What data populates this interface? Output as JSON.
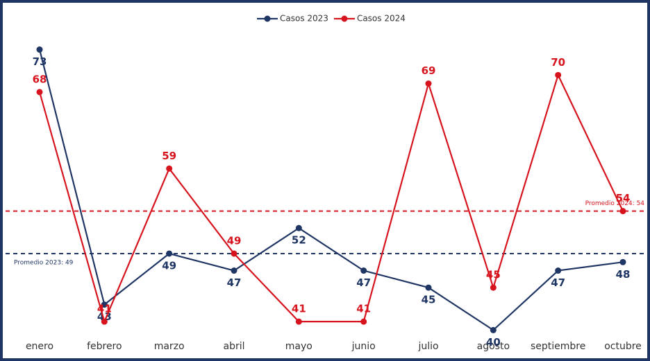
{
  "chart_data": {
    "type": "line",
    "categories": [
      "enero",
      "febrero",
      "marzo",
      "abril",
      "mayo",
      "junio",
      "julio",
      "agosto",
      "septiembre",
      "octubre"
    ],
    "series": [
      {
        "name": "Casos 2023",
        "color": "#1f3564",
        "values": [
          73,
          43,
          49,
          47,
          52,
          47,
          45,
          40,
          47,
          48
        ]
      },
      {
        "name": "Casos 2024",
        "color": "#d7141e",
        "values": [
          68,
          41,
          59,
          49,
          41,
          41,
          69,
          45,
          70,
          54
        ]
      }
    ],
    "reference_lines": [
      {
        "value": 49,
        "label": "Promedio 2023: 49",
        "color": "#1f3564"
      },
      {
        "value": 54,
        "label": "Promedio 2024: 54",
        "color": "#d7141e"
      }
    ],
    "ylim": [
      39.3,
      77.2
    ],
    "legend": "top"
  }
}
